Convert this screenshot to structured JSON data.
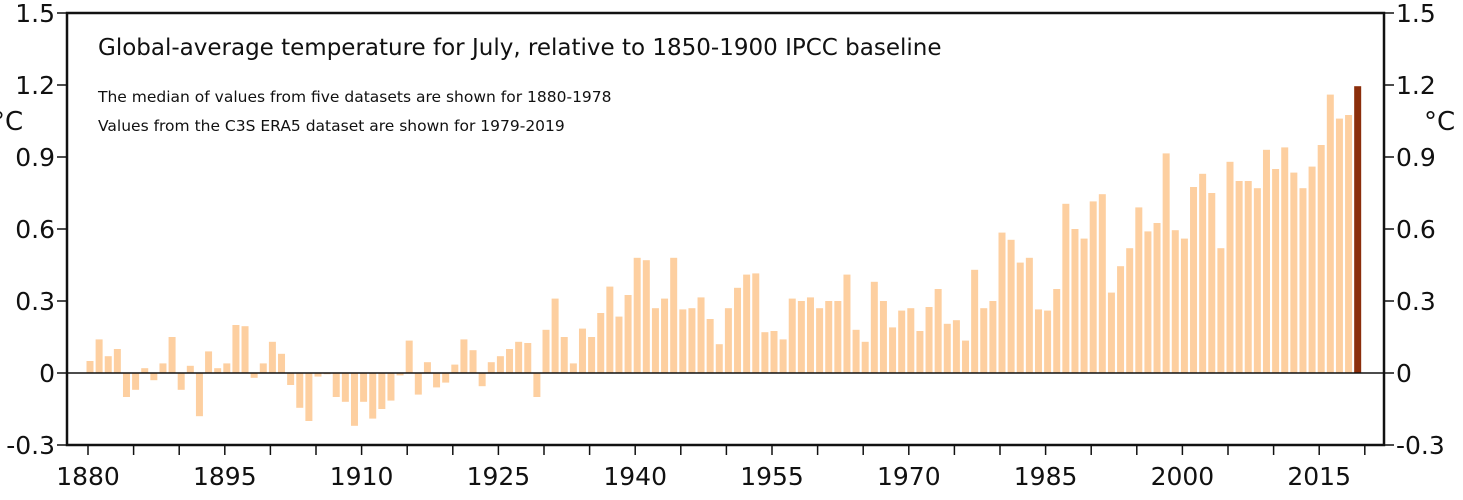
{
  "chart_data": {
    "type": "bar",
    "title": "Global-average temperature for July, relative to 1850-1900 IPCC baseline",
    "annotations": [
      "The median of values from five datasets are shown for 1880-1978",
      "Values from the C3S ERA5 dataset are shown for 1979-2019"
    ],
    "xlabel": "",
    "ylabel": "°C",
    "ylabel_right": "°C",
    "ylim": [
      -0.3,
      1.5
    ],
    "xlim": [
      1879,
      2021
    ],
    "yticks": [
      -0.3,
      0,
      0.3,
      0.6,
      0.9,
      1.2,
      1.5
    ],
    "ytick_labels": [
      "-0.3",
      "0",
      "0.3",
      "0.6",
      "0.9",
      "1.2",
      "1.5"
    ],
    "xtick_labels": [
      "1880",
      "1895",
      "1910",
      "1925",
      "1940",
      "1955",
      "1970",
      "1985",
      "2000",
      "2015"
    ],
    "xtick_label_years": [
      1880,
      1895,
      1910,
      1925,
      1940,
      1955,
      1970,
      1985,
      2000,
      2015
    ],
    "xtick_minor_step_years": 5,
    "grid": false,
    "legend": null,
    "colors": {
      "bar": "#FDCFA0",
      "highlight_bar": "#8B2E0B",
      "axis": "#111111"
    },
    "highlight_year": 2019,
    "start_year": 1880,
    "values": [
      0.05,
      0.14,
      0.07,
      0.1,
      -0.1,
      -0.07,
      0.02,
      -0.03,
      0.04,
      0.15,
      -0.07,
      0.03,
      -0.18,
      0.09,
      0.02,
      0.04,
      0.2,
      0.195,
      -0.02,
      0.04,
      0.13,
      0.08,
      -0.05,
      -0.145,
      -0.2,
      -0.015,
      -0.005,
      -0.1,
      -0.12,
      -0.22,
      -0.12,
      -0.19,
      -0.15,
      -0.115,
      -0.01,
      0.135,
      -0.09,
      0.045,
      -0.06,
      -0.04,
      0.035,
      0.14,
      0.095,
      -0.055,
      0.045,
      0.07,
      0.1,
      0.13,
      0.125,
      -0.1,
      0.18,
      0.31,
      0.15,
      0.04,
      0.185,
      0.15,
      0.25,
      0.36,
      0.235,
      0.325,
      0.48,
      0.47,
      0.27,
      0.31,
      0.48,
      0.265,
      0.27,
      0.315,
      0.225,
      0.12,
      0.27,
      0.355,
      0.41,
      0.415,
      0.17,
      0.175,
      0.14,
      0.31,
      0.3,
      0.315,
      0.27,
      0.3,
      0.3,
      0.41,
      0.18,
      0.13,
      0.38,
      0.3,
      0.19,
      0.26,
      0.27,
      0.175,
      0.275,
      0.35,
      0.205,
      0.22,
      0.135,
      0.43,
      0.27,
      0.3,
      0.585,
      0.555,
      0.46,
      0.48,
      0.265,
      0.26,
      0.35,
      0.705,
      0.6,
      0.56,
      0.715,
      0.745,
      0.335,
      0.445,
      0.52,
      0.69,
      0.59,
      0.625,
      0.915,
      0.595,
      0.56,
      0.775,
      0.83,
      0.75,
      0.52,
      0.88,
      0.8,
      0.8,
      0.77,
      0.93,
      0.85,
      0.94,
      0.835,
      0.77,
      0.86,
      0.95,
      1.16,
      1.06,
      1.075,
      1.195
    ]
  }
}
